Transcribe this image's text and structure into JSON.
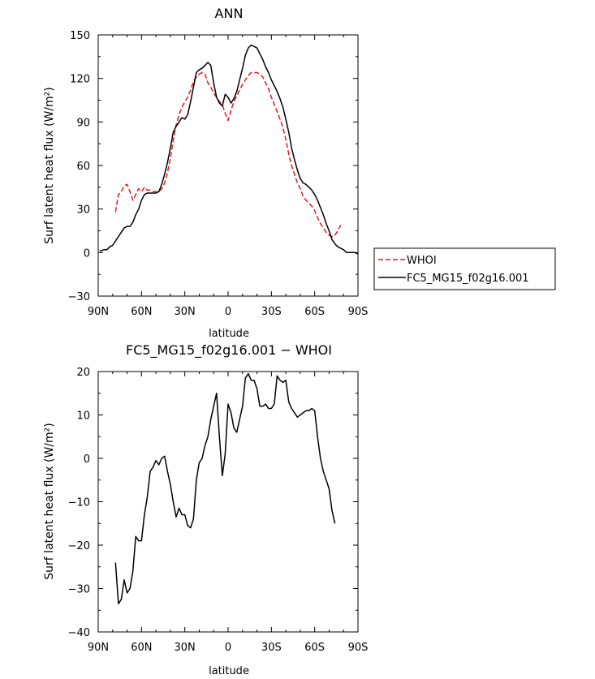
{
  "chart_data": [
    {
      "type": "line",
      "title": "ANN",
      "xlabel": "latitude",
      "ylabel": "Surf latent heat flux (W/m²)",
      "xlim": [
        90,
        -90
      ],
      "ylim": [
        -30,
        150
      ],
      "yticks": [
        -30,
        0,
        30,
        60,
        90,
        120,
        150
      ],
      "xticks": [
        {
          "value": 90,
          "label": "90N"
        },
        {
          "value": 60,
          "label": "60N"
        },
        {
          "value": 30,
          "label": "30N"
        },
        {
          "value": 0,
          "label": "0"
        },
        {
          "value": -30,
          "label": "30S"
        },
        {
          "value": -60,
          "label": "60S"
        },
        {
          "value": -90,
          "label": "90S"
        }
      ],
      "legend": {
        "position": "right",
        "entries": [
          "WHOI",
          "FC5_MG15_f02g16.001"
        ]
      },
      "series": [
        {
          "name": "WHOI",
          "color": "#e8141c",
          "dash": true,
          "points": [
            [
              78,
              28
            ],
            [
              76,
              40
            ],
            [
              74,
              42
            ],
            [
              72,
              46
            ],
            [
              70,
              47
            ],
            [
              68,
              42
            ],
            [
              66,
              36
            ],
            [
              64,
              40
            ],
            [
              62,
              44
            ],
            [
              60,
              42
            ],
            [
              58,
              45
            ],
            [
              56,
              43
            ],
            [
              54,
              43
            ],
            [
              52,
              42
            ],
            [
              50,
              42
            ],
            [
              48,
              42
            ],
            [
              46,
              44
            ],
            [
              44,
              48
            ],
            [
              42,
              55
            ],
            [
              40,
              65
            ],
            [
              38,
              77
            ],
            [
              36,
              88
            ],
            [
              34,
              95
            ],
            [
              32,
              100
            ],
            [
              30,
              104
            ],
            [
              28,
              107
            ],
            [
              26,
              112
            ],
            [
              24,
              118
            ],
            [
              22,
              121
            ],
            [
              20,
              123
            ],
            [
              18,
              124
            ],
            [
              16,
              123
            ],
            [
              14,
              117
            ],
            [
              12,
              114
            ],
            [
              10,
              110
            ],
            [
              8,
              107
            ],
            [
              6,
              104
            ],
            [
              4,
              102
            ],
            [
              2,
              96
            ],
            [
              0,
              91
            ],
            [
              -2,
              98
            ],
            [
              -4,
              104
            ],
            [
              -6,
              108
            ],
            [
              -8,
              112
            ],
            [
              -10,
              116
            ],
            [
              -12,
              119
            ],
            [
              -14,
              122
            ],
            [
              -16,
              124
            ],
            [
              -18,
              124
            ],
            [
              -20,
              124
            ],
            [
              -22,
              123
            ],
            [
              -24,
              121
            ],
            [
              -26,
              117
            ],
            [
              -28,
              113
            ],
            [
              -30,
              107
            ],
            [
              -32,
              102
            ],
            [
              -34,
              97
            ],
            [
              -36,
              92
            ],
            [
              -38,
              86
            ],
            [
              -40,
              78
            ],
            [
              -42,
              68
            ],
            [
              -44,
              60
            ],
            [
              -46,
              54
            ],
            [
              -48,
              48
            ],
            [
              -50,
              44
            ],
            [
              -52,
              39
            ],
            [
              -54,
              36
            ],
            [
              -56,
              34
            ],
            [
              -58,
              32
            ],
            [
              -60,
              29
            ],
            [
              -62,
              24
            ],
            [
              -64,
              20
            ],
            [
              -66,
              17
            ],
            [
              -68,
              14
            ],
            [
              -70,
              12
            ],
            [
              -72,
              11
            ],
            [
              -74,
              12
            ],
            [
              -76,
              15
            ],
            [
              -78,
              19
            ]
          ]
        },
        {
          "name": "FC5_MG15_f02g16.001",
          "color": "#000000",
          "dash": false,
          "points": [
            [
              89,
              1
            ],
            [
              86,
              2
            ],
            [
              84,
              2
            ],
            [
              82,
              4
            ],
            [
              80,
              5
            ],
            [
              78,
              8
            ],
            [
              76,
              11
            ],
            [
              74,
              14
            ],
            [
              72,
              17
            ],
            [
              70,
              18
            ],
            [
              68,
              18
            ],
            [
              66,
              21
            ],
            [
              64,
              26
            ],
            [
              62,
              30
            ],
            [
              60,
              36
            ],
            [
              58,
              40
            ],
            [
              56,
              41
            ],
            [
              54,
              41
            ],
            [
              52,
              41
            ],
            [
              50,
              41
            ],
            [
              48,
              42
            ],
            [
              46,
              47
            ],
            [
              44,
              54
            ],
            [
              42,
              62
            ],
            [
              40,
              72
            ],
            [
              38,
              83
            ],
            [
              36,
              87
            ],
            [
              34,
              90
            ],
            [
              32,
              93
            ],
            [
              30,
              92
            ],
            [
              28,
              95
            ],
            [
              26,
              104
            ],
            [
              24,
              114
            ],
            [
              22,
              124
            ],
            [
              20,
              126
            ],
            [
              18,
              127
            ],
            [
              16,
              129
            ],
            [
              14,
              131
            ],
            [
              12,
              129
            ],
            [
              10,
              117
            ],
            [
              8,
              107
            ],
            [
              6,
              103
            ],
            [
              4,
              101
            ],
            [
              2,
              109
            ],
            [
              0,
              107
            ],
            [
              -2,
              103
            ],
            [
              -4,
              106
            ],
            [
              -6,
              111
            ],
            [
              -8,
              119
            ],
            [
              -10,
              127
            ],
            [
              -12,
              136
            ],
            [
              -14,
              141
            ],
            [
              -16,
              143
            ],
            [
              -18,
              142
            ],
            [
              -20,
              141
            ],
            [
              -22,
              137
            ],
            [
              -24,
              133
            ],
            [
              -26,
              128
            ],
            [
              -28,
              124
            ],
            [
              -30,
              119
            ],
            [
              -32,
              115
            ],
            [
              -34,
              111
            ],
            [
              -36,
              106
            ],
            [
              -38,
              100
            ],
            [
              -40,
              92
            ],
            [
              -42,
              83
            ],
            [
              -44,
              72
            ],
            [
              -46,
              64
            ],
            [
              -48,
              57
            ],
            [
              -50,
              51
            ],
            [
              -52,
              48
            ],
            [
              -54,
              47
            ],
            [
              -56,
              45
            ],
            [
              -58,
              43
            ],
            [
              -60,
              40
            ],
            [
              -62,
              36
            ],
            [
              -64,
              31
            ],
            [
              -66,
              26
            ],
            [
              -68,
              20
            ],
            [
              -70,
              15
            ],
            [
              -72,
              9
            ],
            [
              -74,
              6
            ],
            [
              -76,
              4
            ],
            [
              -78,
              3
            ],
            [
              -80,
              2
            ],
            [
              -82,
              0
            ],
            [
              -84,
              0
            ],
            [
              -86,
              0
            ],
            [
              -88,
              0
            ],
            [
              -90,
              -1
            ]
          ]
        }
      ]
    },
    {
      "type": "line",
      "title": "FC5_MG15_f02g16.001 − WHOI",
      "xlabel": "latitude",
      "ylabel": "Surf latent heat flux (W/m²)",
      "xlim": [
        90,
        -90
      ],
      "ylim": [
        -40,
        20
      ],
      "yticks": [
        -40,
        -30,
        -20,
        -10,
        0,
        10,
        20
      ],
      "xticks": [
        {
          "value": 90,
          "label": "90N"
        },
        {
          "value": 60,
          "label": "60N"
        },
        {
          "value": 30,
          "label": "30N"
        },
        {
          "value": 0,
          "label": "0"
        },
        {
          "value": -30,
          "label": "30S"
        },
        {
          "value": -60,
          "label": "60S"
        },
        {
          "value": -90,
          "label": "90S"
        }
      ],
      "series": [
        {
          "color": "#000000",
          "dash": false,
          "points": [
            [
              78,
              -24
            ],
            [
              76,
              -33.5
            ],
            [
              74,
              -32.5
            ],
            [
              72,
              -28
            ],
            [
              70,
              -31
            ],
            [
              68,
              -30
            ],
            [
              66,
              -26
            ],
            [
              64,
              -18
            ],
            [
              62,
              -19
            ],
            [
              60,
              -19
            ],
            [
              58,
              -13
            ],
            [
              56,
              -9
            ],
            [
              54,
              -3
            ],
            [
              52,
              -2
            ],
            [
              50,
              -0.5
            ],
            [
              48,
              -1.5
            ],
            [
              46,
              0
            ],
            [
              44,
              0.5
            ],
            [
              42,
              -3
            ],
            [
              40,
              -6
            ],
            [
              38,
              -10
            ],
            [
              36,
              -13.5
            ],
            [
              34,
              -11.5
            ],
            [
              32,
              -13
            ],
            [
              30,
              -13
            ],
            [
              28,
              -15.5
            ],
            [
              26,
              -16
            ],
            [
              24,
              -14
            ],
            [
              22,
              -5
            ],
            [
              20,
              -1
            ],
            [
              18,
              0
            ],
            [
              16,
              3
            ],
            [
              14,
              5
            ],
            [
              12,
              9
            ],
            [
              10,
              12
            ],
            [
              8,
              15
            ],
            [
              6,
              5
            ],
            [
              4,
              -4
            ],
            [
              2,
              1
            ],
            [
              0,
              12.5
            ],
            [
              -2,
              10.5
            ],
            [
              -4,
              7
            ],
            [
              -6,
              6
            ],
            [
              -8,
              9
            ],
            [
              -10,
              12
            ],
            [
              -12,
              18.5
            ],
            [
              -14,
              19.5
            ],
            [
              -16,
              18
            ],
            [
              -18,
              18
            ],
            [
              -20,
              16
            ],
            [
              -22,
              12
            ],
            [
              -24,
              12
            ],
            [
              -26,
              12.5
            ],
            [
              -28,
              11.5
            ],
            [
              -30,
              11.5
            ],
            [
              -32,
              12.5
            ],
            [
              -34,
              19
            ],
            [
              -36,
              18
            ],
            [
              -38,
              17.5
            ],
            [
              -40,
              18
            ],
            [
              -42,
              13
            ],
            [
              -44,
              11.5
            ],
            [
              -46,
              10.5
            ],
            [
              -48,
              9.5
            ],
            [
              -50,
              10
            ],
            [
              -52,
              10.5
            ],
            [
              -54,
              11
            ],
            [
              -56,
              11
            ],
            [
              -58,
              11.5
            ],
            [
              -60,
              11
            ],
            [
              -62,
              5
            ],
            [
              -64,
              0
            ],
            [
              -66,
              -3
            ],
            [
              -68,
              -5
            ],
            [
              -70,
              -7
            ],
            [
              -72,
              -12
            ],
            [
              -74,
              -15
            ]
          ]
        }
      ]
    }
  ]
}
